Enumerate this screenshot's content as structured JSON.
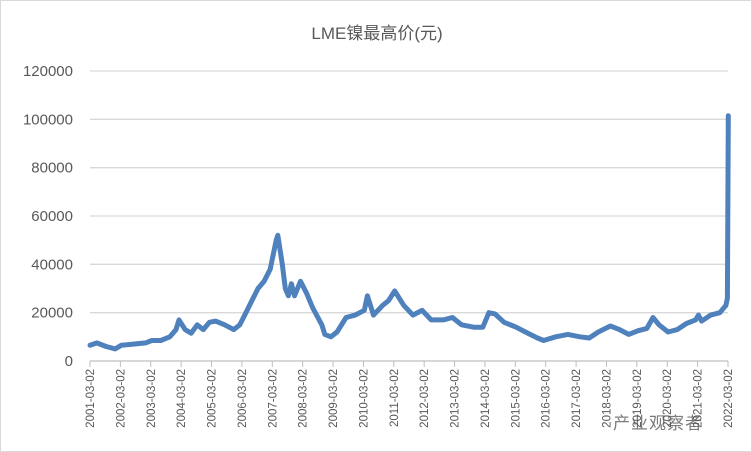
{
  "chart_data": {
    "type": "line",
    "title": "LME镍最高价(元)",
    "xlabel": "",
    "ylabel": "",
    "ylim": [
      0,
      120000
    ],
    "yticks": [
      "0",
      "20000",
      "40000",
      "60000",
      "80000",
      "100000",
      "120000"
    ],
    "xticks": [
      "2001-03-02",
      "2002-03-02",
      "2003-03-02",
      "2004-03-02",
      "2005-03-02",
      "2006-03-02",
      "2007-03-02",
      "2008-03-02",
      "2009-03-02",
      "2010-03-02",
      "2011-03-02",
      "2012-03-02",
      "2013-03-02",
      "2014-03-02",
      "2015-03-02",
      "2016-03-02",
      "2017-03-02",
      "2018-03-02",
      "2019-03-02",
      "2020-03-02",
      "2021-03-02",
      "2022-03-02"
    ],
    "xlim": [
      2001.17,
      2022.17
    ],
    "grid": true,
    "legend": "none",
    "color": "#4f81bd",
    "series": [
      {
        "name": "LME镍最高价",
        "x": [
          2001.17,
          2001.4,
          2001.7,
          2002.0,
          2002.2,
          2002.6,
          2003.0,
          2003.2,
          2003.5,
          2003.8,
          2004.0,
          2004.1,
          2004.3,
          2004.5,
          2004.7,
          2004.9,
          2005.1,
          2005.3,
          2005.6,
          2005.9,
          2006.1,
          2006.3,
          2006.5,
          2006.7,
          2006.9,
          2007.1,
          2007.3,
          2007.35,
          2007.5,
          2007.6,
          2007.7,
          2007.8,
          2007.9,
          2008.1,
          2008.3,
          2008.5,
          2008.8,
          2008.9,
          2009.1,
          2009.3,
          2009.6,
          2009.9,
          2010.2,
          2010.3,
          2010.5,
          2010.8,
          2011.0,
          2011.2,
          2011.5,
          2011.8,
          2012.1,
          2012.4,
          2012.8,
          2013.1,
          2013.4,
          2013.8,
          2014.1,
          2014.3,
          2014.5,
          2014.8,
          2015.2,
          2015.5,
          2015.9,
          2016.1,
          2016.5,
          2016.9,
          2017.3,
          2017.6,
          2017.9,
          2018.3,
          2018.6,
          2018.9,
          2019.2,
          2019.5,
          2019.7,
          2019.9,
          2020.2,
          2020.5,
          2020.8,
          2021.1,
          2021.2,
          2021.3,
          2021.6,
          2021.9,
          2022.1,
          2022.15,
          2022.18
        ],
        "values": [
          6500,
          7500,
          6000,
          5000,
          6500,
          7000,
          7500,
          8500,
          8500,
          10000,
          13000,
          17000,
          13000,
          11500,
          15000,
          13000,
          16000,
          16500,
          15000,
          13000,
          15000,
          20000,
          25000,
          30000,
          33000,
          38000,
          50000,
          52000,
          40000,
          30000,
          27000,
          32000,
          27000,
          33000,
          28000,
          22000,
          15000,
          11000,
          10000,
          12000,
          18000,
          19000,
          21000,
          27000,
          19000,
          23000,
          25000,
          29000,
          23000,
          19000,
          21000,
          17000,
          17000,
          18000,
          15000,
          14000,
          14000,
          20000,
          19500,
          16000,
          14000,
          12000,
          9500,
          8500,
          10000,
          11000,
          10000,
          9500,
          12000,
          14500,
          13000,
          11000,
          12500,
          13500,
          18000,
          15000,
          12000,
          13000,
          15500,
          17000,
          19000,
          16500,
          19000,
          20000,
          23000,
          26000,
          101500
        ]
      }
    ]
  },
  "watermark": "产业观察者"
}
